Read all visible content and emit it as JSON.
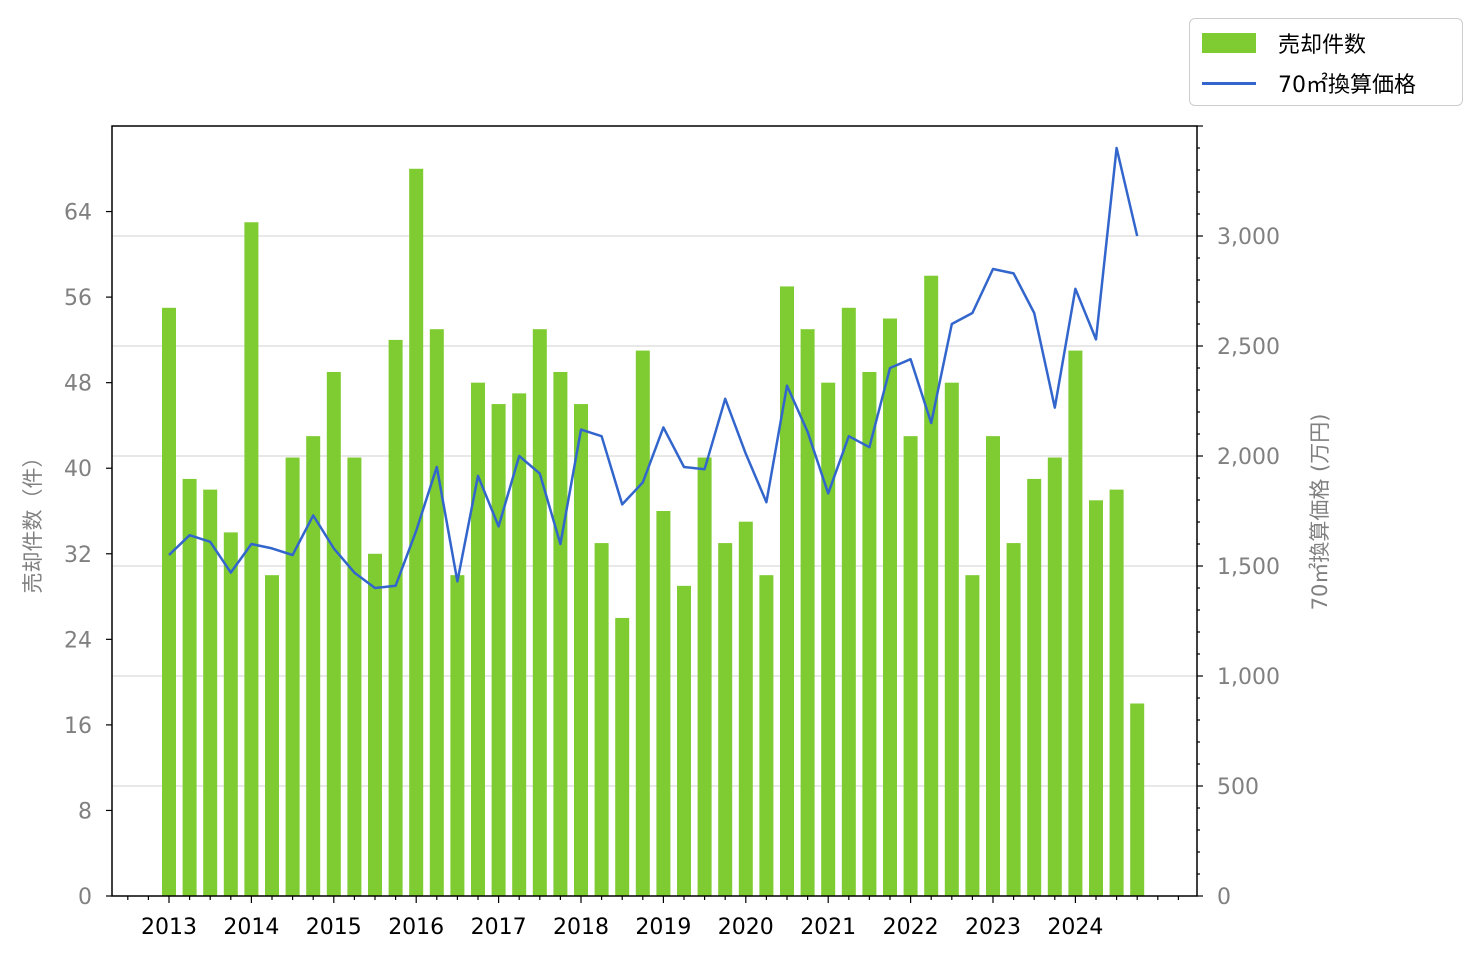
{
  "chart_data": {
    "type": "bar+line",
    "colors": {
      "bar": "#7fcc32",
      "line": "#3366cc",
      "grid": "#d9d9d9",
      "tick_text": "#808080",
      "x_tick_text": "#000000"
    },
    "x_labels": [
      "2013",
      "2014",
      "2015",
      "2016",
      "2017",
      "2018",
      "2019",
      "2020",
      "2021",
      "2022",
      "2023",
      "2024"
    ],
    "left_axis": {
      "label": "売却件数（件）",
      "ticks": [
        "0",
        "8",
        "16",
        "24",
        "32",
        "40",
        "48",
        "56",
        "64"
      ],
      "range": [
        0,
        72
      ]
    },
    "right_axis": {
      "label": "70㎡換算価格 (万円)",
      "ticks": [
        "0",
        "500",
        "1,000",
        "1,500",
        "2,000",
        "2,500",
        "3,000"
      ],
      "range": [
        0,
        3500
      ]
    },
    "grid": "horizontal, right axis",
    "legend": {
      "position": "top-right outside",
      "bar_label": "売却件数",
      "line_label": "70㎡換算価格"
    },
    "periods_per_year": 4,
    "first_year": 2013,
    "series": [
      {
        "name": "売却件数",
        "type": "bar",
        "axis": "left",
        "values": [
          55,
          39,
          38,
          34,
          63,
          30,
          41,
          43,
          49,
          41,
          32,
          52,
          68,
          53,
          30,
          48,
          46,
          47,
          53,
          49,
          46,
          33,
          26,
          51,
          36,
          29,
          41,
          33,
          35,
          30,
          57,
          53,
          48,
          55,
          49,
          54,
          43,
          58,
          48,
          30,
          43,
          33,
          39,
          41,
          51,
          37,
          38,
          18
        ]
      },
      {
        "name": "70㎡換算価格",
        "type": "line",
        "axis": "right",
        "values": [
          1550,
          1640,
          1610,
          1470,
          1600,
          1580,
          1550,
          1730,
          1580,
          1470,
          1400,
          1410,
          1660,
          1950,
          1430,
          1910,
          1680,
          2000,
          1920,
          1600,
          2120,
          2090,
          1780,
          1880,
          2130,
          1950,
          1940,
          2260,
          2010,
          1790,
          2320,
          2110,
          1830,
          2090,
          2040,
          2400,
          2440,
          2150,
          2600,
          2650,
          2850,
          2830,
          2650,
          2220,
          2760,
          2530,
          3400,
          3000
        ]
      }
    ]
  }
}
